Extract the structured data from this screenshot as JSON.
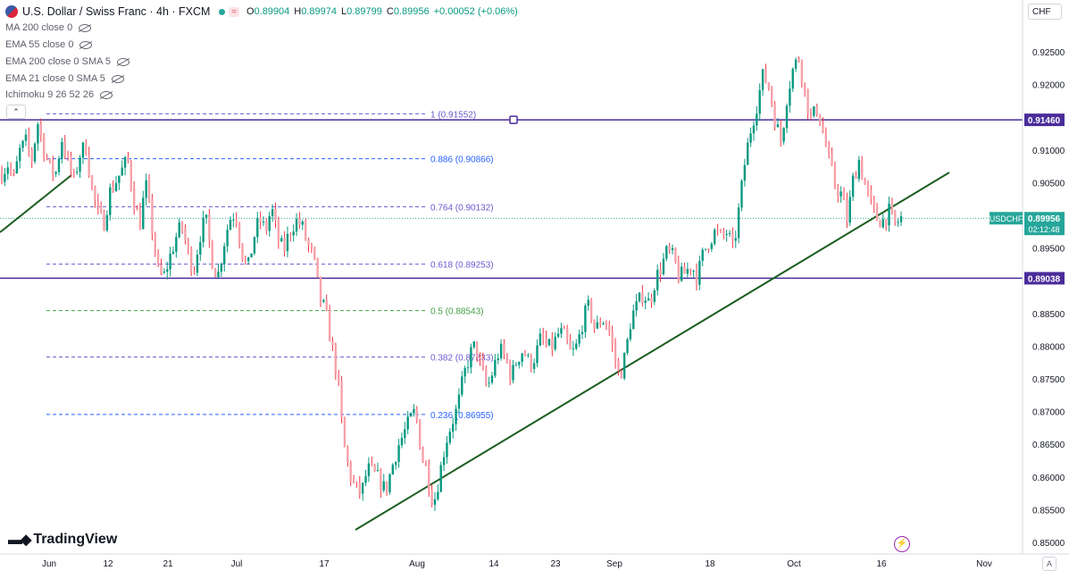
{
  "header": {
    "title": "U.S. Dollar / Swiss Franc · 4h · FXCM",
    "status_pill": "≈",
    "open_label": "O",
    "open": "0.89904",
    "high_label": "H",
    "high": "0.89974",
    "low_label": "L",
    "low": "0.89799",
    "close_label": "C",
    "close": "0.89956",
    "change": "+0.00052 (+0.06%)"
  },
  "indicators": [
    {
      "label": "MA 200 close 0"
    },
    {
      "label": "EMA 55 close 0"
    },
    {
      "label": "EMA 200 close 0 SMA 5"
    },
    {
      "label": "EMA 21 close 0 SMA 5"
    },
    {
      "label": "Ichimoku 9 26 52 26"
    }
  ],
  "toolbar": {
    "currency": "CHF",
    "auto": "A",
    "collapse": "⌃"
  },
  "logo": {
    "text": "TradingView"
  },
  "colors": {
    "up": "#089981",
    "down": "#f23645",
    "purple": "#4a2c9a",
    "trend": "#1b5e20",
    "fib_blue": "#2962ff",
    "fib_green": "#43a047",
    "tag_teal": "#26a69a"
  },
  "chart_data": {
    "type": "candlestick",
    "symbol": "USDCHF",
    "timeframe": "4h",
    "ylim": [
      0.8475,
      0.9295
    ],
    "y_ticks": [
      "0.92500",
      "0.92000",
      "0.91500",
      "0.91000",
      "0.90500",
      "0.90000",
      "0.89500",
      "0.88500",
      "0.88000",
      "0.87500",
      "0.87000",
      "0.86500",
      "0.86000",
      "0.85500",
      "0.85000"
    ],
    "x_labels": [
      "Jun",
      "12",
      "21",
      "Jul",
      "17",
      "Aug",
      "14",
      "23",
      "Sep",
      "18",
      "Oct",
      "16",
      "Nov"
    ],
    "last_price": {
      "symbol": "USDCHF",
      "value": "0.89956",
      "countdown": "02:12:48"
    },
    "horizontal_levels": [
      {
        "value": 0.9146,
        "label": "0.91460"
      },
      {
        "value": 0.89038,
        "label": "0.89038"
      }
    ],
    "fibonacci": [
      {
        "ratio": "1",
        "value": "0.91552"
      },
      {
        "ratio": "0.886",
        "value": "0.90866"
      },
      {
        "ratio": "0.764",
        "value": "0.90132"
      },
      {
        "ratio": "0.618",
        "value": "0.89253"
      },
      {
        "ratio": "0.5",
        "value": "0.88543"
      },
      {
        "ratio": "0.382",
        "value": "0.87833"
      },
      {
        "ratio": "0.236",
        "value": "0.86955"
      }
    ],
    "price_path": [
      0.9065,
      0.9078,
      0.9055,
      0.9098,
      0.9112,
      0.9085,
      0.9142,
      0.9102,
      0.9072,
      0.9064,
      0.9118,
      0.9082,
      0.9052,
      0.9092,
      0.9108,
      0.9042,
      0.9002,
      0.8988,
      0.9035,
      0.9052,
      0.9068,
      0.9085,
      0.9025,
      0.8985,
      0.9048,
      0.8985,
      0.8915,
      0.8905,
      0.8935,
      0.8965,
      0.8985,
      0.8945,
      0.8915,
      0.8968,
      0.8995,
      0.8935,
      0.8905,
      0.8955,
      0.8995,
      0.9005,
      0.8945,
      0.8915,
      0.8965,
      0.8995,
      0.8975,
      0.9012,
      0.8965,
      0.8945,
      0.8975,
      0.8992,
      0.8985,
      0.8955,
      0.8935,
      0.8875,
      0.8852,
      0.8802,
      0.8752,
      0.8652,
      0.8605,
      0.8582,
      0.8575,
      0.8612,
      0.8605,
      0.8595,
      0.8578,
      0.8612,
      0.8645,
      0.8665,
      0.8685,
      0.8702,
      0.8635,
      0.8605,
      0.8558,
      0.8602,
      0.8652,
      0.8682,
      0.8705,
      0.8752,
      0.8785,
      0.8802,
      0.8762,
      0.8735,
      0.8765,
      0.8795,
      0.8782,
      0.8752,
      0.8782,
      0.8795,
      0.8772,
      0.8785,
      0.8815,
      0.8795,
      0.8802,
      0.8822,
      0.8812,
      0.8785,
      0.8802,
      0.8842,
      0.8862,
      0.8822,
      0.8842,
      0.8835,
      0.8792,
      0.8752,
      0.8785,
      0.8845,
      0.8862,
      0.8882,
      0.8865,
      0.8902,
      0.8922,
      0.8945,
      0.8935,
      0.8905,
      0.8912,
      0.8925,
      0.8905,
      0.8942,
      0.8962,
      0.8975,
      0.8965,
      0.8975,
      0.8945,
      0.9012,
      0.9085,
      0.9135,
      0.9172,
      0.9215,
      0.9195,
      0.9145,
      0.9112,
      0.9185,
      0.9225,
      0.9242,
      0.9185,
      0.9145,
      0.9165,
      0.9125,
      0.9082,
      0.9045,
      0.9032,
      0.8992,
      0.9055,
      0.9085,
      0.9045,
      0.9015,
      0.8995,
      0.8992,
      0.9005,
      0.8985,
      0.8996
    ]
  }
}
